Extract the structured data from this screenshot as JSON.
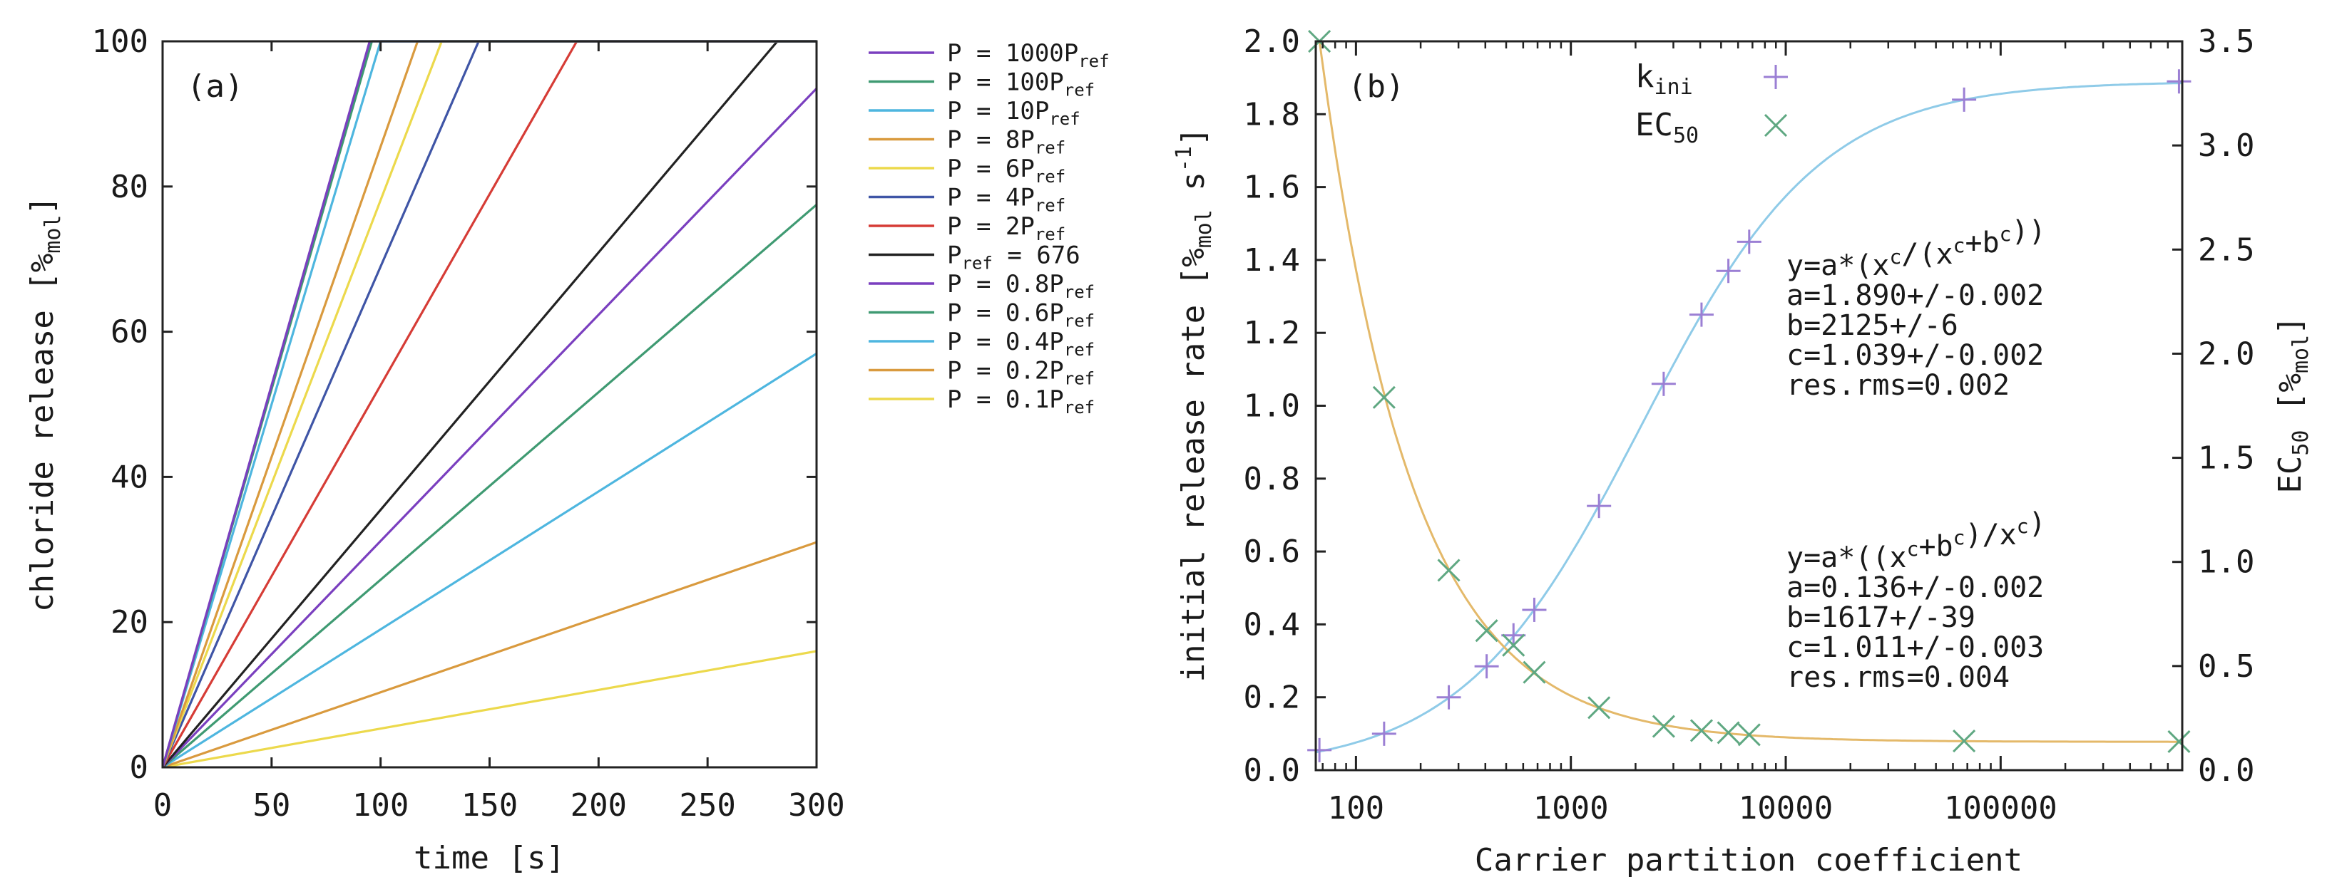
{
  "figure": {
    "panels": [
      {
        "panel_label": "(a)",
        "xlabel": "time [s]",
        "ylabel": "chloride release [%mol]",
        "ylabel_parts": {
          "main": "chloride release [%",
          "sub": "mol",
          "end": "]"
        },
        "xticks": [
          "0",
          "50",
          "100",
          "150",
          "200",
          "250",
          "300"
        ],
        "yticks": [
          "0",
          "20",
          "40",
          "60",
          "80",
          "100"
        ],
        "legend": [
          {
            "main": "P = 1000P",
            "sub": "ref",
            "color": "#7a3fbf"
          },
          {
            "main": "P = 100P",
            "sub": "ref",
            "color": "#3f9a72"
          },
          {
            "main": "P = 10P",
            "sub": "ref",
            "color": "#4eb6df"
          },
          {
            "main": "P = 8P",
            "sub": "ref",
            "color": "#d99a3e"
          },
          {
            "main": "P = 6P",
            "sub": "ref",
            "color": "#ecd94c"
          },
          {
            "main": "P = 4P",
            "sub": "ref",
            "color": "#3f55a6"
          },
          {
            "main": "P = 2P",
            "sub": "ref",
            "color": "#d63c36"
          },
          {
            "main": "P",
            "sub": "ref",
            "tail": " = 676",
            "color": "#222222"
          },
          {
            "main": "P = 0.8P",
            "sub": "ref",
            "color": "#7a3fbf"
          },
          {
            "main": "P = 0.6P",
            "sub": "ref",
            "color": "#3f9a72"
          },
          {
            "main": "P = 0.4P",
            "sub": "ref",
            "color": "#4eb6df"
          },
          {
            "main": "P = 0.2P",
            "sub": "ref",
            "color": "#d99a3e"
          },
          {
            "main": "P = 0.1P",
            "sub": "ref",
            "color": "#ecd94c"
          }
        ]
      },
      {
        "panel_label": "(b)",
        "xlabel": "Carrier partition coefficient",
        "ylabel_left_parts": {
          "main": "initial release rate [%",
          "sub": "mol",
          "mid": " s",
          "sup": "-1",
          "end": "]"
        },
        "ylabel_right_parts": {
          "main": "EC",
          "sub": "50",
          "mid": " [%",
          "sub2": "mol",
          "end": "]"
        },
        "xticks": [
          "100",
          "1000",
          "10000",
          "100000"
        ],
        "yticks_left": [
          "0.0",
          "0.2",
          "0.4",
          "0.6",
          "0.8",
          "1.0",
          "1.2",
          "1.4",
          "1.6",
          "1.8",
          "2.0"
        ],
        "yticks_right": [
          "0.0",
          "0.5",
          "1.0",
          "1.5",
          "2.0",
          "2.5",
          "3.0",
          "3.5"
        ],
        "legend": [
          {
            "main": "k",
            "sub": "ini",
            "marker": "plus",
            "color": "#9b7fd4"
          },
          {
            "main": "EC",
            "sub": "50",
            "marker": "cross",
            "color": "#5fa882"
          }
        ],
        "fit_kini": [
          "y=a*(x^c/(x^c+b^c))",
          "a=1.890+/-0.002",
          "b=2125+/-6",
          "c=1.039+/-0.002",
          "res.rms=0.002"
        ],
        "fit_ec50": [
          "y=a*((x^c+b^c)/x^c)",
          "a=0.136+/-0.002",
          "b=1617+/-39",
          "c=1.011+/-0.003",
          "res.rms=0.004"
        ]
      }
    ]
  },
  "chart_data": [
    {
      "type": "line",
      "title": "",
      "xlabel": "time [s]",
      "ylabel": "chloride release [%mol]",
      "xlim": [
        0,
        300
      ],
      "ylim": [
        0,
        100
      ],
      "grid": false,
      "legend_position": "outside-right",
      "series": [
        {
          "name": "P = 1000Pref",
          "color": "#7a3fbf",
          "x": [
            0,
            95,
            300
          ],
          "y": [
            0,
            100,
            100
          ]
        },
        {
          "name": "P = 100Pref",
          "color": "#3f9a72",
          "x": [
            0,
            96,
            300
          ],
          "y": [
            0,
            100,
            100
          ]
        },
        {
          "name": "P = 10Pref",
          "color": "#4eb6df",
          "x": [
            0,
            100,
            300
          ],
          "y": [
            0,
            100,
            100
          ]
        },
        {
          "name": "P = 8Pref",
          "color": "#d99a3e",
          "x": [
            0,
            117,
            300
          ],
          "y": [
            0,
            100,
            100
          ]
        },
        {
          "name": "P = 6Pref",
          "color": "#ecd94c",
          "x": [
            0,
            128,
            300
          ],
          "y": [
            0,
            100,
            100
          ]
        },
        {
          "name": "P = 4Pref",
          "color": "#3f55a6",
          "x": [
            0,
            145,
            300
          ],
          "y": [
            0,
            100,
            100
          ]
        },
        {
          "name": "P = 2Pref",
          "color": "#d63c36",
          "x": [
            0,
            190,
            300
          ],
          "y": [
            0,
            100,
            100
          ]
        },
        {
          "name": "Pref = 676",
          "color": "#222222",
          "x": [
            0,
            282,
            300
          ],
          "y": [
            0,
            100,
            100
          ]
        },
        {
          "name": "P = 0.8Pref",
          "color": "#7a3fbf",
          "x": [
            0,
            300
          ],
          "y": [
            0,
            93.5
          ]
        },
        {
          "name": "P = 0.6Pref",
          "color": "#3f9a72",
          "x": [
            0,
            300
          ],
          "y": [
            0,
            77.5
          ]
        },
        {
          "name": "P = 0.4Pref",
          "color": "#4eb6df",
          "x": [
            0,
            300
          ],
          "y": [
            0,
            57
          ]
        },
        {
          "name": "P = 0.2Pref",
          "color": "#d99a3e",
          "x": [
            0,
            300
          ],
          "y": [
            0,
            31
          ]
        },
        {
          "name": "P = 0.1Pref",
          "color": "#ecd94c",
          "x": [
            0,
            300
          ],
          "y": [
            0,
            16
          ]
        }
      ]
    },
    {
      "type": "scatter",
      "title": "",
      "xlabel": "Carrier partition coefficient",
      "ylabel": "initial release rate [%mol s-1]",
      "y2label": "EC50 [%mol]",
      "xscale": "log",
      "xlim": [
        65,
        700000
      ],
      "ylim": [
        0,
        2.0
      ],
      "y2lim": [
        0,
        3.5
      ],
      "grid": false,
      "legend_position": "top-center",
      "series": [
        {
          "name": "kini",
          "axis": "left",
          "marker": "plus",
          "color": "#9b7fd4",
          "x": [
            67.6,
            135.2,
            270.4,
            405.6,
            540.8,
            676,
            1352,
            2704,
            4056,
            5408,
            6760,
            67600,
            676000
          ],
          "y": [
            0.055,
            0.1,
            0.2,
            0.285,
            0.37,
            0.44,
            0.725,
            1.06,
            1.25,
            1.37,
            1.45,
            1.84,
            1.89
          ]
        },
        {
          "name": "EC50",
          "axis": "right",
          "marker": "cross",
          "color": "#5fa882",
          "x": [
            67.6,
            135.2,
            270.4,
            405.6,
            540.8,
            676,
            1352,
            2704,
            4056,
            5408,
            6760,
            67600,
            676000
          ],
          "y": [
            3.5,
            1.79,
            0.96,
            0.67,
            0.6,
            0.47,
            0.3,
            0.21,
            0.19,
            0.18,
            0.17,
            0.14,
            0.137
          ]
        }
      ],
      "fits": [
        {
          "series": "kini",
          "formula": "y=a*(x^c/(x^c+b^c))",
          "a": 1.89,
          "b": 2125,
          "c": 1.039,
          "color": "#8fcbe8"
        },
        {
          "series": "EC50",
          "formula": "y=a*((x^c+b^c)/x^c)",
          "a": 0.136,
          "b": 1617,
          "c": 1.011,
          "color": "#e4b96a"
        }
      ]
    }
  ]
}
